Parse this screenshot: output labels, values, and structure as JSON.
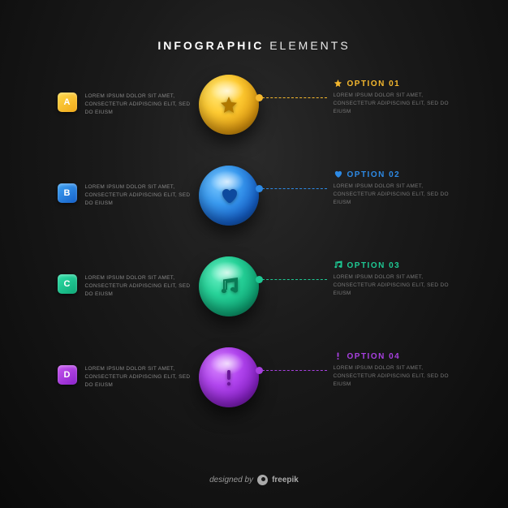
{
  "header": {
    "bold": "INFOGRAPHIC",
    "light": "ELEMENTS"
  },
  "lorem": "LOREM IPSUM DOLOR SIT AMET, CONSECTETUR ADIPISCING ELIT, SED DO EIUSM",
  "items": [
    {
      "letter": "A",
      "letter_bg": "linear-gradient(145deg,#ffd94a,#f0a818)",
      "sphere_bg": "radial-gradient(circle at 35% 30%, #ffe87a 0%, #ffcc33 35%, #e09b10 70%, #a66b00 100%)",
      "icon": "star",
      "icon_color": "#b07800",
      "accent": "#f5b82e",
      "option": "OPTION 01"
    },
    {
      "letter": "B",
      "letter_bg": "linear-gradient(145deg,#3fa4f5,#1560c9)",
      "sphere_bg": "radial-gradient(circle at 35% 30%, #7ac8ff 0%, #3a9bf0 35%, #1560c9 70%, #0b3a80 100%)",
      "icon": "heart",
      "icon_color": "#0d4a9e",
      "accent": "#2d8ae5",
      "option": "OPTION 02"
    },
    {
      "letter": "C",
      "letter_bg": "linear-gradient(145deg,#2fe0a8,#0fa877)",
      "sphere_bg": "radial-gradient(circle at 35% 30%, #6af0c4 0%, #28d49a 35%, #0fa877 70%, #066b4a 100%)",
      "icon": "music",
      "icon_color": "#0a7a55",
      "accent": "#1ec893",
      "option": "OPTION 03"
    },
    {
      "letter": "D",
      "letter_bg": "linear-gradient(145deg,#c858f0,#8a22c9)",
      "sphere_bg": "radial-gradient(circle at 35% 30%, #d98aff 0%, #b347f0 35%, #8a22c9 70%, #5a0f8a 100%)",
      "icon": "exclaim",
      "icon_color": "#6a1599",
      "accent": "#a840e0",
      "option": "OPTION 04"
    }
  ],
  "footer": {
    "prefix": "designed by",
    "brand": "freepik"
  }
}
